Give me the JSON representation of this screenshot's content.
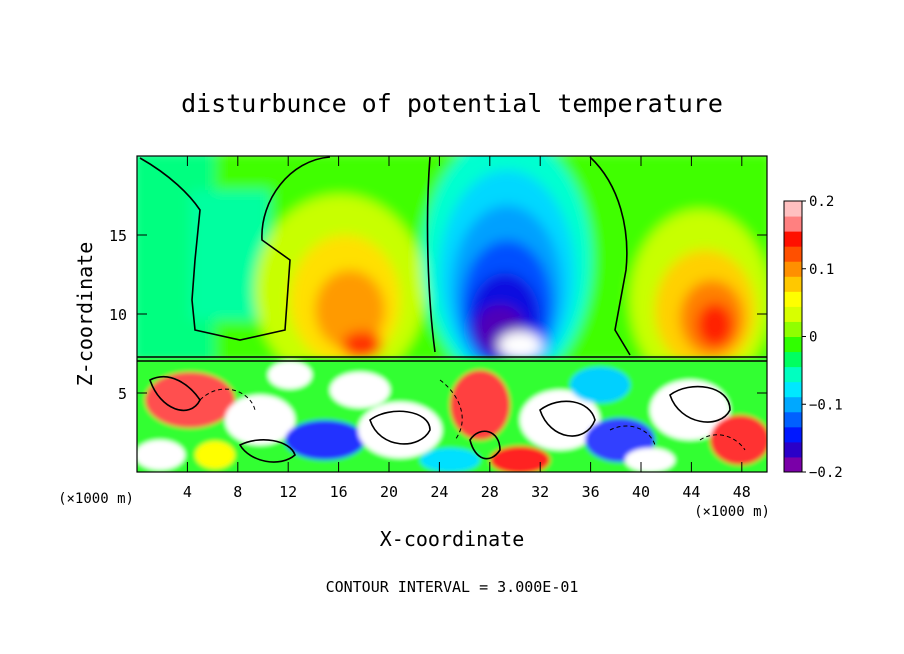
{
  "chart_data": {
    "type": "heatmap",
    "title": "disturbunce of potential temperature",
    "xlabel": "X-coordinate",
    "ylabel": "Z-coordinate",
    "x_unit": "(×1000 m)",
    "y_unit": "(×1000 m)",
    "xlim": [
      0,
      50
    ],
    "ylim": [
      0,
      20
    ],
    "x_ticks": [
      4,
      8,
      12,
      16,
      20,
      24,
      28,
      32,
      36,
      40,
      44,
      48
    ],
    "y_ticks": [
      5,
      10,
      15
    ],
    "colorbar": {
      "range": [
        -0.2,
        0.2
      ],
      "tick_values": [
        0.2,
        0.1,
        0,
        -0.1,
        -0.2
      ],
      "tick_labels": [
        "0.2",
        "0.1",
        "0",
        "−0.1",
        "−0.2"
      ],
      "colors": [
        "#7a00a8",
        "#2a00c8",
        "#0018ff",
        "#0060ff",
        "#00a8ff",
        "#00e8ff",
        "#00ffc0",
        "#00ff60",
        "#30ff00",
        "#90ff00",
        "#d8ff00",
        "#ffff00",
        "#ffc800",
        "#ff9000",
        "#ff5000",
        "#ff1000",
        "#ff8080",
        "#ffc0c0"
      ]
    },
    "features": [
      {
        "name": "negative anomaly",
        "x_center": 29,
        "z_top": 19.5,
        "z_bottom": 8,
        "min_value": -0.2
      },
      {
        "name": "positive anomaly",
        "x_center": 17,
        "z_center": 10.5,
        "max_value": 0.11
      },
      {
        "name": "positive anomaly",
        "x_center": 45,
        "z_center": 10.5,
        "max_value": 0.13
      },
      {
        "name": "turbulent layer",
        "z_bottom": 0,
        "z_top": 7.2
      }
    ],
    "footnote": "CONTOUR INTERVAL = 3.000E-01"
  }
}
